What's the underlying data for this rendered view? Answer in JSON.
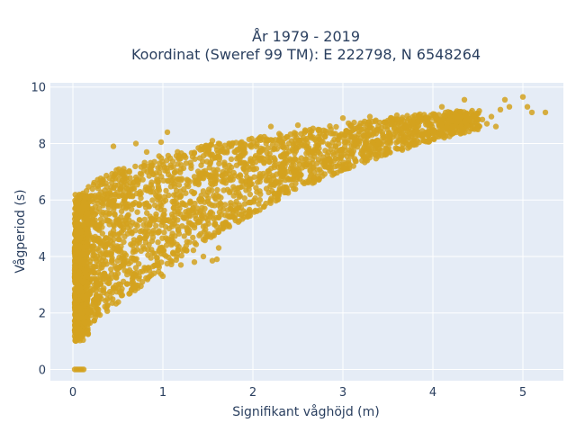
{
  "chart_data": {
    "type": "scatter",
    "title_line1": "År 1979 - 2019",
    "title_line2": "Koordinat (Sweref 99 TM): E 222798, N 6548264",
    "xlabel": "Signifikant våghöjd (m)",
    "ylabel": "Vågperiod (s)",
    "xlim": [
      -0.25,
      5.45
    ],
    "ylim": [
      -0.4,
      10.15
    ],
    "x_ticks": [
      0,
      1,
      2,
      3,
      4,
      5
    ],
    "y_ticks": [
      0,
      2,
      4,
      6,
      8,
      10
    ],
    "grid": true,
    "marker_color": "#d4a21e",
    "plot_background": "#e5ecf6",
    "upper_envelope": [
      [
        0.0,
        5.6
      ],
      [
        0.1,
        6.3
      ],
      [
        0.3,
        6.8
      ],
      [
        0.5,
        7.1
      ],
      [
        1.0,
        7.6
      ],
      [
        1.5,
        7.95
      ],
      [
        2.0,
        8.2
      ],
      [
        2.5,
        8.45
      ],
      [
        3.0,
        8.7
      ],
      [
        3.5,
        8.9
      ],
      [
        4.0,
        9.1
      ],
      [
        4.5,
        9.2
      ]
    ],
    "lower_envelope": [
      [
        0.03,
        1.1
      ],
      [
        0.1,
        1.2
      ],
      [
        0.2,
        1.6
      ],
      [
        0.4,
        2.1
      ],
      [
        0.6,
        2.6
      ],
      [
        0.8,
        3.0
      ],
      [
        1.0,
        3.4
      ],
      [
        1.5,
        4.6
      ],
      [
        2.0,
        5.5
      ],
      [
        2.5,
        6.4
      ],
      [
        3.0,
        7.0
      ],
      [
        3.5,
        7.6
      ],
      [
        4.0,
        8.1
      ],
      [
        4.5,
        8.5
      ]
    ],
    "points": [
      [
        0.02,
        0.0
      ],
      [
        0.04,
        0.0
      ],
      [
        0.06,
        0.0
      ],
      [
        0.08,
        0.0
      ],
      [
        0.1,
        0.0
      ],
      [
        0.12,
        0.0
      ],
      [
        0.45,
        7.9
      ],
      [
        0.7,
        8.0
      ],
      [
        0.82,
        7.7
      ],
      [
        0.98,
        8.05
      ],
      [
        1.05,
        8.4
      ],
      [
        1.55,
        8.1
      ],
      [
        1.45,
        4.0
      ],
      [
        1.55,
        3.85
      ],
      [
        1.6,
        3.9
      ],
      [
        1.62,
        4.3
      ],
      [
        1.45,
        4.6
      ],
      [
        2.2,
        8.6
      ],
      [
        2.5,
        8.65
      ],
      [
        3.0,
        8.9
      ],
      [
        3.3,
        8.95
      ],
      [
        3.6,
        9.0
      ],
      [
        3.8,
        9.0
      ],
      [
        4.1,
        9.3
      ],
      [
        4.2,
        8.8
      ],
      [
        4.35,
        9.55
      ],
      [
        4.5,
        8.5
      ],
      [
        4.6,
        8.7
      ],
      [
        4.75,
        9.2
      ],
      [
        4.8,
        9.55
      ],
      [
        4.85,
        9.3
      ],
      [
        5.0,
        9.65
      ],
      [
        5.05,
        9.3
      ],
      [
        5.1,
        9.1
      ],
      [
        5.25,
        9.1
      ],
      [
        4.45,
        9.0
      ],
      [
        4.65,
        8.95
      ],
      [
        4.55,
        8.85
      ],
      [
        4.7,
        8.6
      ],
      [
        4.3,
        8.95
      ],
      [
        0.55,
        4.0
      ],
      [
        0.7,
        3.6
      ],
      [
        0.85,
        3.5
      ],
      [
        1.0,
        3.3
      ],
      [
        1.2,
        3.7
      ],
      [
        1.35,
        3.8
      ]
    ]
  }
}
